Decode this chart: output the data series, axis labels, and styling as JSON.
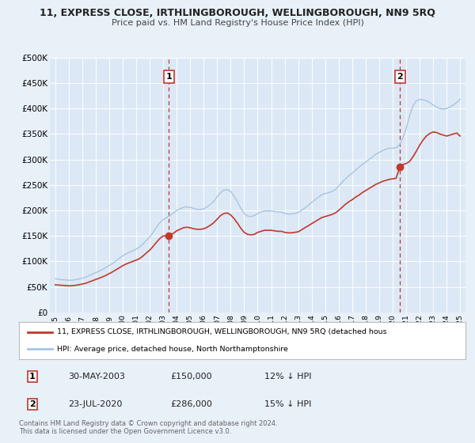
{
  "title": "11, EXPRESS CLOSE, IRTHLINGBOROUGH, WELLINGBOROUGH, NN9 5RQ",
  "subtitle": "Price paid vs. HM Land Registry's House Price Index (HPI)",
  "ylim": [
    0,
    500000
  ],
  "yticks": [
    0,
    50000,
    100000,
    150000,
    200000,
    250000,
    300000,
    350000,
    400000,
    450000,
    500000
  ],
  "ytick_labels": [
    "£0",
    "£50K",
    "£100K",
    "£150K",
    "£200K",
    "£250K",
    "£300K",
    "£350K",
    "£400K",
    "£450K",
    "£500K"
  ],
  "xlim_start": 1994.6,
  "xlim_end": 2025.4,
  "xticks": [
    1995,
    1996,
    1997,
    1998,
    1999,
    2000,
    2001,
    2002,
    2003,
    2004,
    2005,
    2006,
    2007,
    2008,
    2009,
    2010,
    2011,
    2012,
    2013,
    2014,
    2015,
    2016,
    2017,
    2018,
    2019,
    2020,
    2021,
    2022,
    2023,
    2024,
    2025
  ],
  "hpi_color": "#a8c4e0",
  "price_color": "#c0392b",
  "bg_color": "#e8f0f8",
  "plot_bg": "#dce8f5",
  "grid_color": "#ffffff",
  "marker1_x": 2003.41,
  "marker1_y": 150000,
  "marker2_x": 2020.55,
  "marker2_y": 286000,
  "legend_line1": "11, EXPRESS CLOSE, IRTHLINGBOROUGH, WELLINGBOROUGH, NN9 5RQ (detached hous",
  "legend_line2": "HPI: Average price, detached house, North Northamptonshire",
  "table_row1": [
    "1",
    "30-MAY-2003",
    "£150,000",
    "12% ↓ HPI"
  ],
  "table_row2": [
    "2",
    "23-JUL-2020",
    "£286,000",
    "15% ↓ HPI"
  ],
  "footer1": "Contains HM Land Registry data © Crown copyright and database right 2024.",
  "footer2": "This data is licensed under the Open Government Licence v3.0."
}
